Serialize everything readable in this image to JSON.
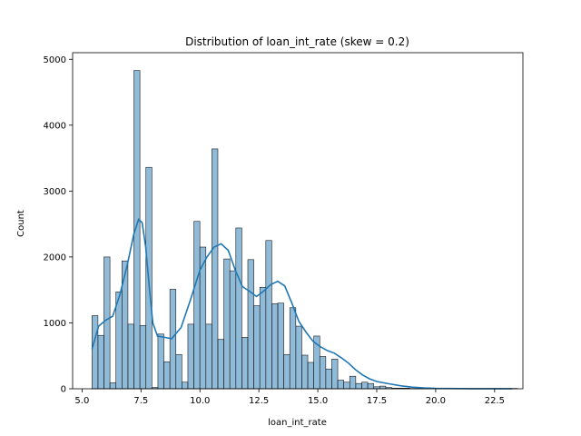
{
  "chart_data": {
    "type": "bar",
    "title": "Distribution of loan_int_rate (skew = 0.2)",
    "xlabel": "loan_int_rate",
    "ylabel": "Count",
    "xlim": [
      4.6,
      23.7
    ],
    "ylim": [
      0,
      5100
    ],
    "x_ticks": [
      5.0,
      7.5,
      10.0,
      12.5,
      15.0,
      17.5,
      20.0,
      22.5
    ],
    "x_tick_labels": [
      "5.0",
      "7.5",
      "10.0",
      "12.5",
      "15.0",
      "17.5",
      "20.0",
      "22.5"
    ],
    "y_ticks": [
      0,
      1000,
      2000,
      3000,
      4000,
      5000
    ],
    "y_tick_labels": [
      "0",
      "1000",
      "2000",
      "3000",
      "4000",
      "5000"
    ],
    "grid": false,
    "legend": "none",
    "bin_start": 5.42,
    "bin_width": 0.2543,
    "values": [
      1110,
      810,
      2000,
      90,
      1470,
      1940,
      980,
      4830,
      960,
      3360,
      20,
      830,
      410,
      1510,
      520,
      100,
      980,
      2540,
      2150,
      980,
      3640,
      750,
      1970,
      1790,
      2440,
      780,
      1960,
      1260,
      1540,
      2250,
      1290,
      1300,
      520,
      1230,
      950,
      510,
      400,
      800,
      490,
      300,
      450,
      130,
      100,
      190,
      80,
      100,
      80,
      30,
      40,
      20,
      10,
      10,
      10,
      5,
      5,
      5,
      5,
      5,
      5,
      5,
      5,
      5,
      5,
      5,
      5,
      5,
      5,
      5,
      5,
      5,
      5
    ],
    "kde": {
      "x": [
        5.42,
        5.7,
        6.0,
        6.3,
        6.6,
        6.9,
        7.2,
        7.4,
        7.55,
        7.7,
        7.85,
        8.0,
        8.2,
        8.5,
        8.8,
        9.2,
        9.6,
        10.0,
        10.3,
        10.6,
        10.9,
        11.2,
        11.5,
        11.8,
        12.1,
        12.4,
        12.7,
        13.0,
        13.3,
        13.6,
        13.9,
        14.2,
        14.5,
        14.8,
        15.1,
        15.4,
        15.7,
        16.0,
        16.3,
        16.6,
        16.9,
        17.2,
        17.5,
        17.8,
        18.1,
        18.5,
        19.0,
        19.5,
        20.0,
        20.5,
        21.0,
        21.5,
        22.0,
        22.5,
        23.0,
        23.25
      ],
      "y": [
        600,
        950,
        1040,
        1100,
        1420,
        1850,
        2350,
        2570,
        2520,
        2150,
        1550,
        1000,
        800,
        780,
        760,
        930,
        1350,
        1800,
        2000,
        2150,
        2200,
        2100,
        1800,
        1550,
        1480,
        1400,
        1480,
        1580,
        1630,
        1560,
        1300,
        1020,
        860,
        720,
        640,
        580,
        540,
        470,
        390,
        290,
        210,
        150,
        110,
        90,
        70,
        45,
        25,
        12,
        6,
        4,
        3,
        2,
        2,
        1,
        1,
        1
      ]
    }
  }
}
